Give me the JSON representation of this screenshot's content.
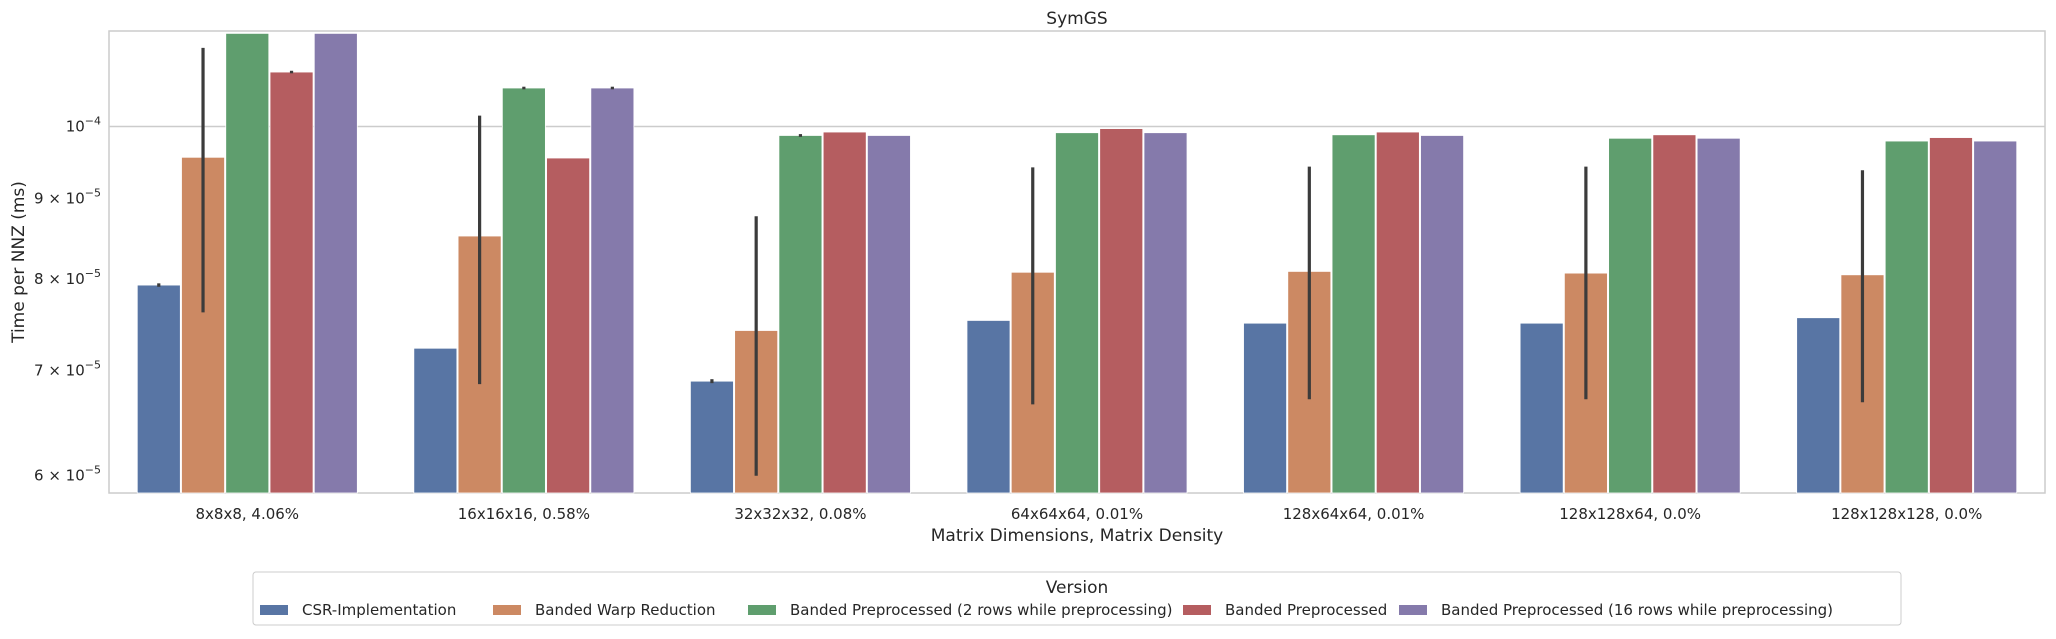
{
  "chart_data": {
    "type": "bar",
    "title": "SymGS",
    "xlabel": "Matrix Dimensions, Matrix Density",
    "ylabel": "Time per NNZ (ms)",
    "yscale": "log",
    "ylim": [
      5.85e-05,
      0.000115
    ],
    "grid": "y-major",
    "yticks": [
      {
        "value": 6e-05,
        "mantissa": "6",
        "exponent": "−5"
      },
      {
        "value": 7e-05,
        "mantissa": "7",
        "exponent": "−5"
      },
      {
        "value": 8e-05,
        "mantissa": "8",
        "exponent": "−5"
      },
      {
        "value": 9e-05,
        "mantissa": "9",
        "exponent": "−5"
      },
      {
        "value": 0.0001,
        "mantissa": "",
        "exponent": "−4"
      }
    ],
    "categories": [
      "8x8x8, 4.06%",
      "16x16x16, 0.58%",
      "32x32x32, 0.08%",
      "64x64x64, 0.01%",
      "128x64x64, 0.01%",
      "128x128x64, 0.0%",
      "128x128x128, 0.0%"
    ],
    "series": [
      {
        "name": "CSR-Implementation",
        "color": "#5875a4",
        "values": [
          7.93e-05,
          7.23e-05,
          6.89e-05,
          7.53e-05,
          7.5e-05,
          7.5e-05,
          7.56e-05
        ],
        "err_low": [
          7.91e-05,
          null,
          6.87e-05,
          null,
          null,
          null,
          null
        ],
        "err_high": [
          7.95e-05,
          null,
          6.91e-05,
          null,
          null,
          null,
          null
        ]
      },
      {
        "name": "Banded Warp Reduction",
        "color": "#cc8963",
        "values": [
          9.56e-05,
          8.52e-05,
          7.42e-05,
          8.08e-05,
          8.09e-05,
          8.07e-05,
          8.05e-05
        ],
        "err_low": [
          7.62e-05,
          6.86e-05,
          6e-05,
          6.66e-05,
          6.71e-05,
          6.71e-05,
          6.68e-05
        ],
        "err_high": [
          0.0001122,
          0.0001016,
          8.77e-05,
          9.42e-05,
          9.43e-05,
          9.43e-05,
          9.38e-05
        ]
      },
      {
        "name": "Banded Preprocessed (2 rows while preprocessing)",
        "color": "#5f9e6e",
        "values": [
          0.0001146,
          0.0001058,
          9.87e-05,
          9.91e-05,
          9.88e-05,
          9.83e-05,
          9.79e-05
        ],
        "err_low": [
          null,
          0.0001056,
          9.85e-05,
          null,
          null,
          null,
          null
        ],
        "err_high": [
          null,
          0.000106,
          9.89e-05,
          null,
          null,
          null,
          null
        ]
      },
      {
        "name": "Banded Preprocessed",
        "color": "#b55d60",
        "values": [
          0.0001083,
          9.55e-05,
          9.92e-05,
          9.97e-05,
          9.92e-05,
          9.88e-05,
          9.84e-05
        ],
        "err_low": [
          0.0001081,
          null,
          null,
          null,
          null,
          null,
          null
        ],
        "err_high": [
          0.0001085,
          null,
          null,
          null,
          null,
          null,
          null
        ]
      },
      {
        "name": "Banded Preprocessed (16 rows while preprocessing)",
        "color": "#857aab",
        "values": [
          0.0001146,
          0.0001058,
          9.87e-05,
          9.91e-05,
          9.87e-05,
          9.83e-05,
          9.79e-05
        ],
        "err_low": [
          null,
          0.0001056,
          null,
          null,
          null,
          null,
          null
        ],
        "err_high": [
          null,
          0.000106,
          null,
          null,
          null,
          null,
          null
        ]
      }
    ],
    "legend": {
      "title": "Version",
      "placement": "bottom-center"
    }
  }
}
